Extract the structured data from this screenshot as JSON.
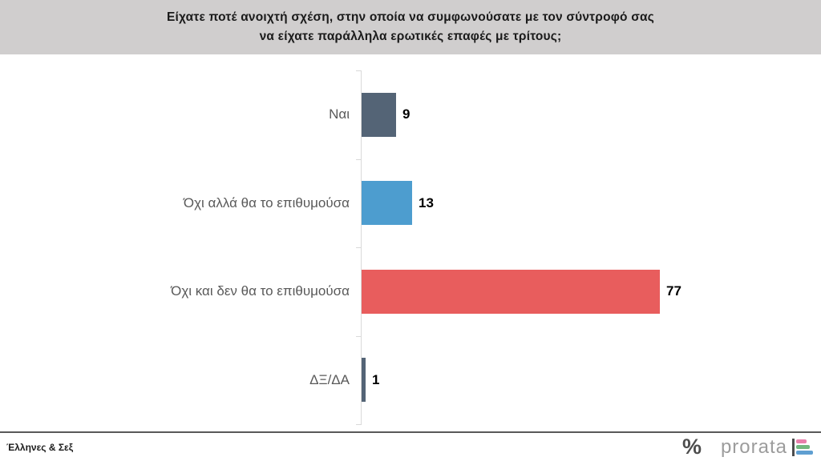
{
  "title": {
    "line1": "Είχατε ποτέ ανοιχτή σχέση, στην οποία να συμφωνούσατε με τον σύντροφό σας",
    "line2": "να είχατε παράλληλα ερωτικές επαφές με τρίτους;"
  },
  "chart_data": {
    "type": "bar",
    "orientation": "horizontal",
    "categories": [
      "Ναι",
      "Όχι αλλά θα το επιθυμούσα",
      "Όχι και δεν θα το επιθυμούσα",
      "ΔΞ/ΔΑ"
    ],
    "values": [
      9,
      13,
      77,
      1
    ],
    "bar_colors": [
      "#546476",
      "#4d9dcf",
      "#e85d5d",
      "#546476"
    ],
    "title": "Είχατε ποτέ ανοιχτή σχέση, στην οποία να συμφωνούσατε με τον σύντροφό σας να είχατε παράλληλα ερωτικές επαφές με τρίτους;",
    "xlabel": "",
    "ylabel": "",
    "grid": false,
    "legend": false,
    "value_labels_shown": true,
    "axis_color": "#d9d9d9",
    "category_label_color": "#595959",
    "value_label_color": "#000000"
  },
  "footer": {
    "source_label": "Έλληνες & Σεξ",
    "logo": {
      "percent_symbol": "%",
      "brand_text": "prorata",
      "mark_stem_color": "#4d4d4d",
      "mark_colors": [
        "#e87fab",
        "#72b77f",
        "#5f9fd1"
      ]
    }
  },
  "colors": {
    "header_bg": "#d0cece",
    "title_text": "#1a1a1a",
    "divider": "#595959",
    "background": "#ffffff"
  }
}
